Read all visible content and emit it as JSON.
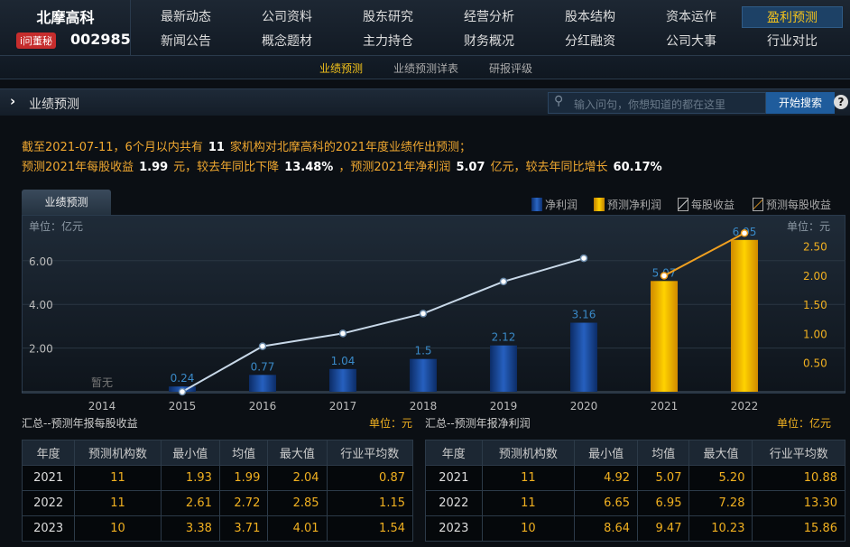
{
  "header": {
    "stock_name": "北摩高科",
    "dongmi_badge": "i问董秘",
    "stock_code": "002985",
    "nav": [
      [
        "最新动态",
        "公司资料",
        "股东研究",
        "经营分析",
        "股本结构",
        "资本运作",
        "盈利预测"
      ],
      [
        "新闻公告",
        "概念题材",
        "主力持仓",
        "财务概况",
        "分红融资",
        "公司大事",
        "行业对比"
      ]
    ],
    "active_nav": "盈利预测",
    "subnav": [
      "业绩预测",
      "业绩预测详表",
      "研报评级"
    ]
  },
  "section": {
    "title": "业绩预测",
    "search_placeholder": "输入问句，你想知道的都在这里",
    "search_button": "开始搜索",
    "help": "?"
  },
  "summary": {
    "l1_a": "截至2021-07-11，6个月以内共有",
    "l1_n": "11",
    "l1_b": "家机构对北摩高科的2021年度业绩作出预测；",
    "l2_a": "预测2021年每股收益",
    "eps": "1.99",
    "l2_b": "元，较去年同比下降",
    "eps_chg": "13.48%",
    "l2_c": "，预测2021年净利润",
    "np": "5.07",
    "l2_d": "亿元，较去年同比增长",
    "np_chg": "60.17%"
  },
  "chart_tab": "业绩预测",
  "chart_data": {
    "type": "bar",
    "legend": [
      "净利润",
      "预测净利润",
      "每股收益",
      "预测每股收益"
    ],
    "left_unit": "单位：亿元",
    "right_unit": "单位：元",
    "categories": [
      "2014",
      "2015",
      "2016",
      "2017",
      "2018",
      "2019",
      "2020",
      "2021",
      "2022"
    ],
    "net_profit": [
      null,
      0.24,
      0.77,
      1.04,
      1.5,
      2.12,
      3.16,
      5.07,
      6.95
    ],
    "forecast_flags": [
      false,
      false,
      false,
      false,
      false,
      false,
      false,
      true,
      true
    ],
    "no_data_label": "暂无",
    "eps": [
      null,
      0.0,
      0.78,
      1.0,
      1.34,
      1.89,
      2.29,
      1.99,
      2.72
    ],
    "left_ticks": [
      "2.00",
      "4.00",
      "6.00"
    ],
    "right_ticks": [
      "0.50",
      "1.00",
      "1.50",
      "2.00",
      "2.50"
    ],
    "colors": {
      "actual": "#1a4ea0",
      "forecast": "#f0b000",
      "eps_line": "#c8d8e8",
      "eps_forecast_line": "#f0a020"
    }
  },
  "eps_table": {
    "title": "汇总--预测年报每股收益",
    "unit": "单位：元",
    "headers": [
      "年度",
      "预测机构数",
      "最小值",
      "均值",
      "最大值",
      "行业平均数"
    ],
    "rows": [
      [
        "2021",
        "11",
        "1.93",
        "1.99",
        "2.04",
        "0.87"
      ],
      [
        "2022",
        "11",
        "2.61",
        "2.72",
        "2.85",
        "1.15"
      ],
      [
        "2023",
        "10",
        "3.38",
        "3.71",
        "4.01",
        "1.54"
      ]
    ]
  },
  "np_table": {
    "title": "汇总--预测年报净利润",
    "unit": "单位：亿元",
    "headers": [
      "年度",
      "预测机构数",
      "最小值",
      "均值",
      "最大值",
      "行业平均数"
    ],
    "rows": [
      [
        "2021",
        "11",
        "4.92",
        "5.07",
        "5.20",
        "10.88"
      ],
      [
        "2022",
        "11",
        "6.65",
        "6.95",
        "7.28",
        "13.30"
      ],
      [
        "2023",
        "10",
        "8.64",
        "9.47",
        "10.23",
        "15.86"
      ]
    ]
  }
}
